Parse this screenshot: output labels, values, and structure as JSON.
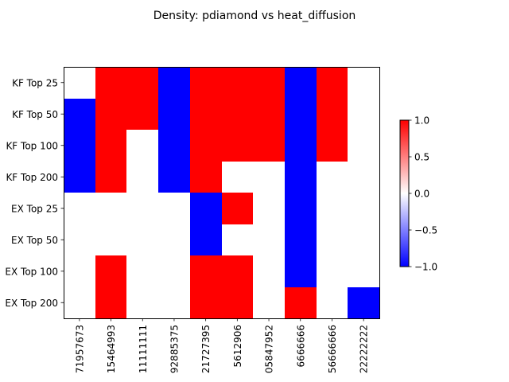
{
  "chart_data": {
    "type": "heatmap",
    "title": "Density: pdiamond vs heat_diffusion",
    "xlabel": "",
    "ylabel": "",
    "rows": [
      "KF Top 25",
      "KF Top 50",
      "KF Top 100",
      "KF Top 200",
      "EX Top 25",
      "EX Top 50",
      "EX Top 100",
      "EX Top 200"
    ],
    "columns": [
      "71957673",
      "15464993",
      "11111111",
      "92885375",
      "21727395",
      "5612906",
      "05847952",
      "6666666",
      "56666666",
      "22222222"
    ],
    "values": [
      [
        0,
        1,
        1,
        -1,
        1,
        1,
        1,
        -1,
        1,
        0
      ],
      [
        -1,
        1,
        1,
        -1,
        1,
        1,
        1,
        -1,
        1,
        0
      ],
      [
        -1,
        1,
        0,
        -1,
        1,
        1,
        1,
        -1,
        1,
        0
      ],
      [
        -1,
        1,
        0,
        -1,
        1,
        0,
        0,
        -1,
        0,
        0
      ],
      [
        0,
        0,
        0,
        0,
        -1,
        1,
        0,
        -1,
        0,
        0
      ],
      [
        0,
        0,
        0,
        0,
        -1,
        0,
        0,
        -1,
        0,
        0
      ],
      [
        0,
        1,
        0,
        0,
        1,
        1,
        0,
        -1,
        0,
        0
      ],
      [
        0,
        1,
        0,
        0,
        1,
        1,
        0,
        1,
        0,
        -1
      ]
    ],
    "colormap": "bwr",
    "vmin": -1,
    "vmax": 1,
    "colors": {
      "low": "#0000ff",
      "mid": "#ffffff",
      "high": "#ff0000"
    },
    "colorbar": {
      "ticks": [
        1.0,
        0.5,
        0.0,
        -0.5,
        -1.0
      ],
      "tick_labels": [
        "1.0",
        "0.5",
        "0.0",
        "−0.5",
        "−1.0"
      ]
    }
  }
}
